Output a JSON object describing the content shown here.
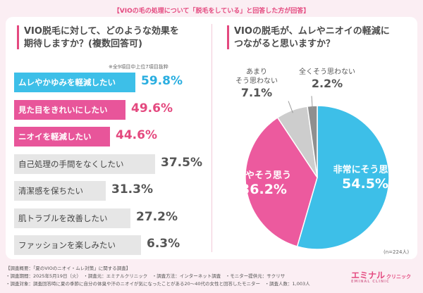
{
  "banner": "【VIOの毛の処理について「脱毛をしている」と回答した方が回答】",
  "left": {
    "question_line1": "VIO脱毛に対して、どのような効果を",
    "question_line2": "期待しますか？(複数回答可)",
    "note": "※全9項目中上位7項目抜粋"
  },
  "right": {
    "question_line1": "VIOの脱毛が、ムレやニオイの軽減に",
    "question_line2": "つながると思いますか？",
    "n_note": "(n=224人)"
  },
  "chart_data": [
    {
      "type": "bar",
      "orientation": "horizontal",
      "categories": [
        "ムレやかゆみを軽減したい",
        "見た目をきれいにしたい",
        "ニオイを軽減したい",
        "自己処理の手間をなくしたい",
        "清潔感を保ちたい",
        "肌トラブルを改善したい",
        "ファッションを楽しみたい"
      ],
      "values": [
        59.8,
        49.6,
        44.6,
        37.5,
        31.3,
        27.2,
        6.3
      ],
      "value_labels": [
        "59.8%",
        "49.6%",
        "44.6%",
        "37.5%",
        "31.3%",
        "27.2%",
        "6.3%"
      ],
      "bar_colors": [
        "#3dbfe8",
        "#e8559a",
        "#e8559a",
        "#e6e6e6",
        "#e6e6e6",
        "#e6e6e6",
        "#e6e6e6"
      ],
      "value_colors": [
        "#2aaee0",
        "#e4497f",
        "#e4497f",
        "#555555",
        "#555555",
        "#555555",
        "#555555"
      ],
      "highlighted": [
        true,
        true,
        true,
        false,
        false,
        false,
        false
      ]
    },
    {
      "type": "pie",
      "categories": [
        "非常にそう思う",
        "ややそう思う",
        "あまりそう思わない",
        "全くそう思わない"
      ],
      "values": [
        54.5,
        36.2,
        7.1,
        2.2
      ],
      "value_labels": [
        "54.5%",
        "36.2%",
        "7.1%",
        "2.2%"
      ],
      "colors": [
        "#3dbfe8",
        "#ec5a9e",
        "#cdcdcd",
        "#8f8f8f"
      ]
    }
  ],
  "footer": {
    "line1": "【調査概要：「夏のVIOのニオイ・ムレ対策」に関する調査】",
    "line2": "・調査期間：2025年5月19日（火）　・調査元：エミナルクリニック　・調査方法：インターネット調査　・モニター提供元：サクリサ",
    "line3": "・調査対象：調査回答時に夏の季節に自分の体臭や汗のニオイが気になったことがある20〜40代の女性と回答したモニター　・調査人数：1,003人"
  },
  "logo": {
    "main": "エミナル",
    "sub": "クリニック",
    "en": "EMINAL CLINIC"
  }
}
